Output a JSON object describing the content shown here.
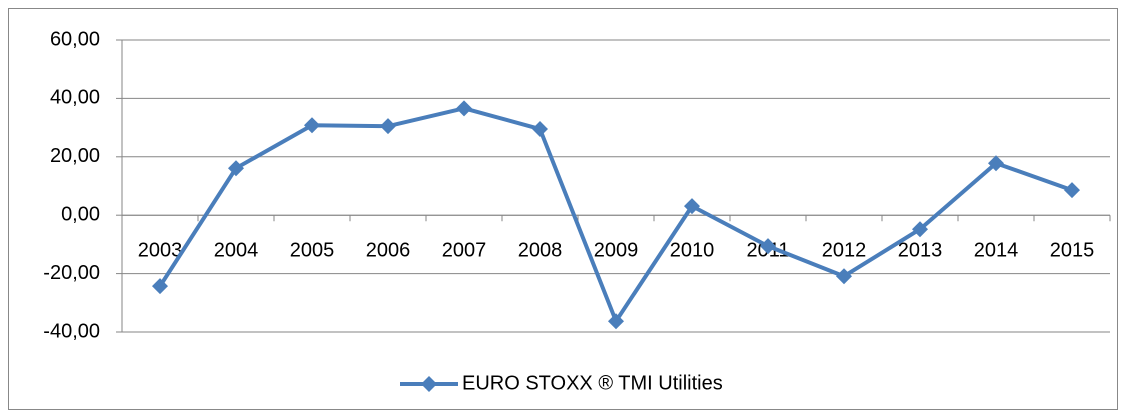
{
  "chart_data": {
    "type": "line",
    "categories": [
      "2003",
      "2004",
      "2005",
      "2006",
      "2007",
      "2008",
      "2009",
      "2010",
      "2011",
      "2012",
      "2013",
      "2014",
      "2015"
    ],
    "series": [
      {
        "name": "EURO STOXX ® TMI Utilities",
        "color": "#4a7ebb",
        "values": [
          -24.3,
          16.1,
          30.8,
          30.5,
          36.6,
          29.5,
          -36.3,
          3.1,
          -10.6,
          -20.9,
          -4.8,
          17.8,
          8.6
        ]
      }
    ],
    "ylim": [
      -40,
      60
    ],
    "yticks": [
      {
        "value": -40,
        "label": "-40,00"
      },
      {
        "value": -20,
        "label": "-20,00"
      },
      {
        "value": 0,
        "label": "0,00"
      },
      {
        "value": 20,
        "label": "20,00"
      },
      {
        "value": 40,
        "label": "40,00"
      },
      {
        "value": 60,
        "label": "60,00"
      }
    ],
    "grid": true,
    "legend": "bottom"
  }
}
